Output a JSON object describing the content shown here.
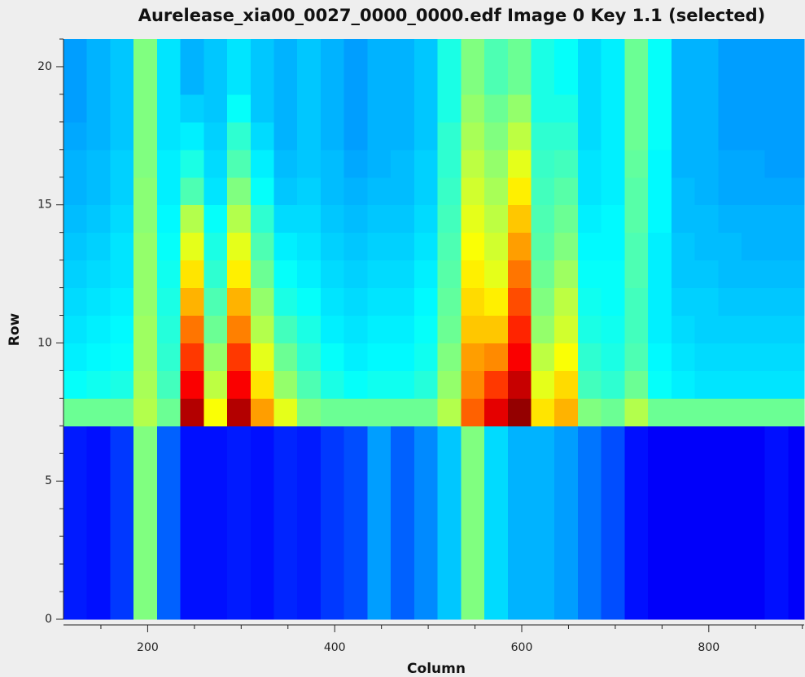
{
  "chart_data": {
    "type": "heatmap",
    "title": "Aurelease_xia00_0027_0000_0000.edf Image 0 Key 1.1 (selected)",
    "x_label": "Column",
    "y_label": "Row",
    "colormap": "jet",
    "zlim": [
      0,
      100
    ],
    "xlim": [
      110,
      902
    ],
    "ylim": [
      0,
      21
    ],
    "xticks": [
      200,
      400,
      600,
      800
    ],
    "xminorticks": [
      150,
      250,
      300,
      350,
      450,
      500,
      550,
      650,
      700,
      750,
      850,
      900
    ],
    "yticks": [
      0,
      5,
      10,
      15,
      20
    ],
    "yminorticks": [
      1,
      2,
      3,
      4,
      6,
      7,
      8,
      9,
      11,
      12,
      13,
      14,
      16,
      17,
      18,
      19,
      21
    ],
    "x_edges": [
      110,
      135,
      160,
      185,
      210,
      235,
      260,
      285,
      310,
      335,
      360,
      385,
      410,
      435,
      460,
      485,
      510,
      535,
      560,
      585,
      610,
      635,
      660,
      685,
      710,
      735,
      760,
      785,
      810,
      835,
      860,
      885,
      902
    ],
    "y_edges": [
      0,
      7,
      8,
      9,
      10,
      11,
      12,
      13,
      14,
      15,
      16,
      17,
      18,
      19,
      20,
      21
    ],
    "z": [
      [
        15,
        14,
        18,
        50,
        22,
        14,
        14,
        15,
        14,
        16,
        15,
        18,
        20,
        28,
        22,
        26,
        32,
        50,
        34,
        30,
        30,
        28,
        24,
        20,
        14,
        12,
        12,
        12,
        12,
        12,
        14,
        12
      ],
      [
        48,
        48,
        48,
        55,
        48,
        95,
        62,
        95,
        72,
        60,
        50,
        48,
        48,
        48,
        48,
        48,
        55,
        78,
        90,
        98,
        65,
        70,
        50,
        48,
        55,
        48,
        48,
        48,
        48,
        48,
        48,
        48
      ],
      [
        38,
        39,
        40,
        54,
        44,
        88,
        56,
        88,
        65,
        52,
        45,
        40,
        38,
        39,
        39,
        41,
        52,
        74,
        82,
        93,
        60,
        66,
        44,
        42,
        48,
        38,
        36,
        35,
        35,
        35,
        35,
        35
      ],
      [
        36,
        37,
        38,
        53,
        42,
        82,
        52,
        82,
        60,
        48,
        42,
        38,
        36,
        37,
        37,
        39,
        50,
        72,
        74,
        88,
        56,
        62,
        42,
        40,
        45,
        37,
        35,
        34,
        34,
        34,
        34,
        34
      ],
      [
        35,
        36,
        37,
        53,
        41,
        76,
        48,
        75,
        55,
        44,
        40,
        36,
        35,
        36,
        36,
        38,
        48,
        68,
        68,
        84,
        52,
        58,
        40,
        39,
        44,
        36,
        34,
        33,
        33,
        33,
        33,
        33
      ],
      [
        34,
        35,
        36,
        52,
        40,
        70,
        45,
        70,
        52,
        40,
        38,
        35,
        34,
        35,
        35,
        37,
        47,
        66,
        64,
        80,
        50,
        56,
        39,
        38,
        44,
        36,
        33,
        33,
        32,
        32,
        32,
        32
      ],
      [
        33,
        34,
        35,
        52,
        39,
        65,
        42,
        64,
        48,
        38,
        36,
        34,
        33,
        34,
        34,
        36,
        46,
        64,
        60,
        76,
        48,
        53,
        38,
        38,
        45,
        36,
        32,
        32,
        31,
        31,
        31,
        31
      ],
      [
        32,
        33,
        35,
        52,
        38,
        60,
        40,
        60,
        45,
        36,
        35,
        33,
        32,
        33,
        33,
        35,
        45,
        62,
        58,
        72,
        46,
        50,
        37,
        37,
        45,
        36,
        32,
        31,
        31,
        30,
        30,
        30
      ],
      [
        31,
        32,
        34,
        51,
        37,
        55,
        38,
        55,
        42,
        34,
        34,
        32,
        31,
        32,
        32,
        34,
        44,
        60,
        56,
        68,
        45,
        48,
        36,
        37,
        46,
        37,
        31,
        31,
        30,
        30,
        30,
        30
      ],
      [
        30,
        31,
        33,
        51,
        36,
        45,
        35,
        50,
        38,
        32,
        33,
        31,
        30,
        31,
        31,
        33,
        43,
        58,
        54,
        64,
        44,
        46,
        35,
        36,
        46,
        37,
        31,
        30,
        29,
        29,
        29,
        29
      ],
      [
        30,
        31,
        33,
        50,
        36,
        40,
        34,
        45,
        36,
        31,
        32,
        31,
        29,
        30,
        31,
        33,
        42,
        56,
        52,
        60,
        43,
        44,
        35,
        36,
        47,
        37,
        30,
        30,
        29,
        29,
        28,
        28
      ],
      [
        29,
        30,
        32,
        50,
        35,
        36,
        33,
        42,
        34,
        30,
        32,
        30,
        28,
        30,
        30,
        32,
        42,
        54,
        50,
        56,
        42,
        42,
        34,
        36,
        48,
        38,
        30,
        30,
        28,
        28,
        28,
        28
      ],
      [
        28,
        30,
        32,
        50,
        35,
        33,
        32,
        38,
        32,
        30,
        32,
        30,
        28,
        30,
        30,
        32,
        40,
        52,
        48,
        52,
        40,
        40,
        34,
        36,
        48,
        38,
        30,
        30,
        28,
        28,
        28,
        28
      ],
      [
        28,
        30,
        32,
        50,
        35,
        30,
        32,
        35,
        32,
        30,
        32,
        30,
        28,
        30,
        30,
        32,
        40,
        50,
        45,
        48,
        40,
        38,
        34,
        36,
        48,
        38,
        30,
        30,
        28,
        28,
        28,
        28
      ],
      [
        28,
        30,
        32,
        50,
        35,
        30,
        32,
        35,
        32,
        30,
        32,
        30,
        28,
        30,
        30,
        32,
        40,
        50,
        45,
        48,
        40,
        38,
        34,
        36,
        48,
        38,
        30,
        30,
        28,
        28,
        28,
        28
      ]
    ]
  }
}
